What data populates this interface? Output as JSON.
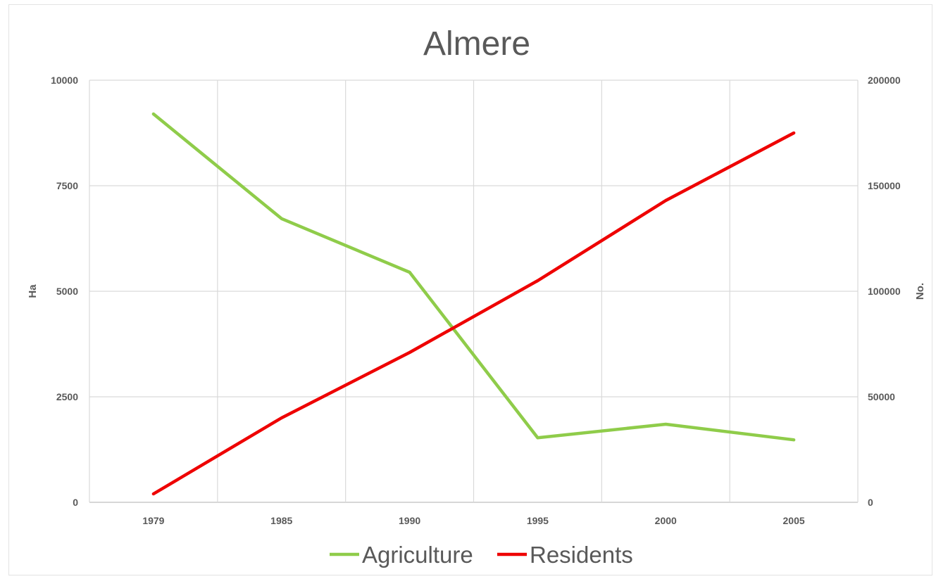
{
  "chart_data": {
    "type": "line",
    "title": "Almere",
    "xlabel": "",
    "ylabel": "Ha",
    "y2label": "No.",
    "categories": [
      "1979",
      "1985",
      "1990",
      "1995",
      "2000",
      "2005"
    ],
    "ylim": [
      0,
      10000
    ],
    "y2lim": [
      0,
      200000
    ],
    "yticks": [
      "0",
      "2500",
      "5000",
      "7500",
      "10000"
    ],
    "y2ticks": [
      "0",
      "50000",
      "100000",
      "150000",
      "200000"
    ],
    "grid": true,
    "legend": "bottom",
    "series": [
      {
        "name": "Agriculture",
        "axis": "left",
        "color": "#8fcc4a",
        "values": [
          9200,
          6720,
          5450,
          1530,
          1850,
          1480
        ]
      },
      {
        "name": "Residents",
        "axis": "right",
        "color": "#ee0000",
        "values": [
          4000,
          40000,
          71000,
          105000,
          143000,
          175000
        ]
      }
    ]
  }
}
